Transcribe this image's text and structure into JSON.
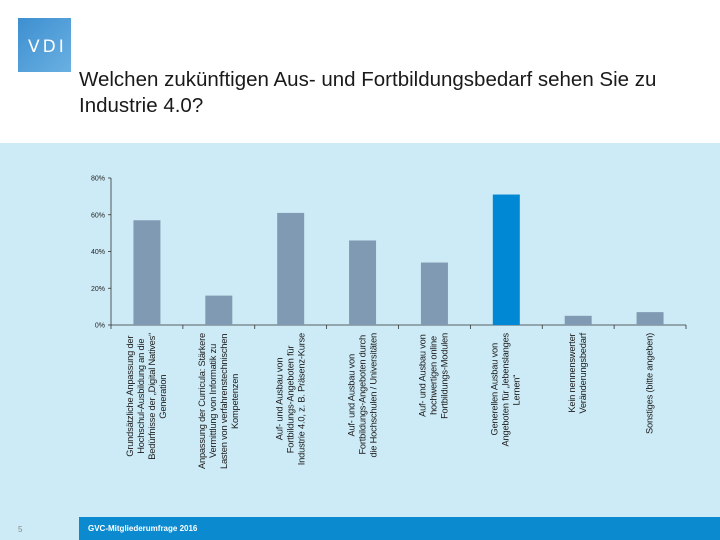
{
  "logo": {
    "text": "VDI"
  },
  "title": "Welchen zukünftigen Aus- und Fortbildungsbedarf sehen Sie zu Industrie 4.0?",
  "footer": {
    "text": "GVC-Mitgliederumfrage 2016",
    "page": "5"
  },
  "chart_data": {
    "type": "bar",
    "categories": [
      "Grundsätzliche Anpassung der\nHochschul-Ausbildung an die\nBedürfnisse der „Digital Natives“\nGeneration",
      "Anpassung der Curricula: Stärkere\nVermittlung von Informatik zu\nLasten von verfahrenstechnischen\nKompetenzen",
      "Auf- und Ausbau von\nFortbildungs-Angeboten für\nIndustrie 4.0, z. B. Präsenz-Kurse",
      "Auf- und Ausbau von\nFortbildungs-Angeboten durch\ndie Hochschulen / Universitäten",
      "Auf- und Ausbau von\nhochwertigen online\nFortbildungs-Modulen",
      "Generellen Ausbau von\nAngeboten für „lebenslanges\nLernen“",
      "Kein nennenswerter\nVeränderungsbedarf",
      "Sonstiges (bitte angeben)"
    ],
    "values": [
      57,
      16,
      61,
      46,
      34,
      71,
      5,
      7
    ],
    "highlight_index": 5,
    "colors": {
      "bar": "#7f9ab2",
      "highlight": "#0088d4"
    },
    "yticks": [
      "0%",
      "20%",
      "40%",
      "60%",
      "80%"
    ],
    "ylim": [
      0,
      80
    ],
    "grid": false
  }
}
